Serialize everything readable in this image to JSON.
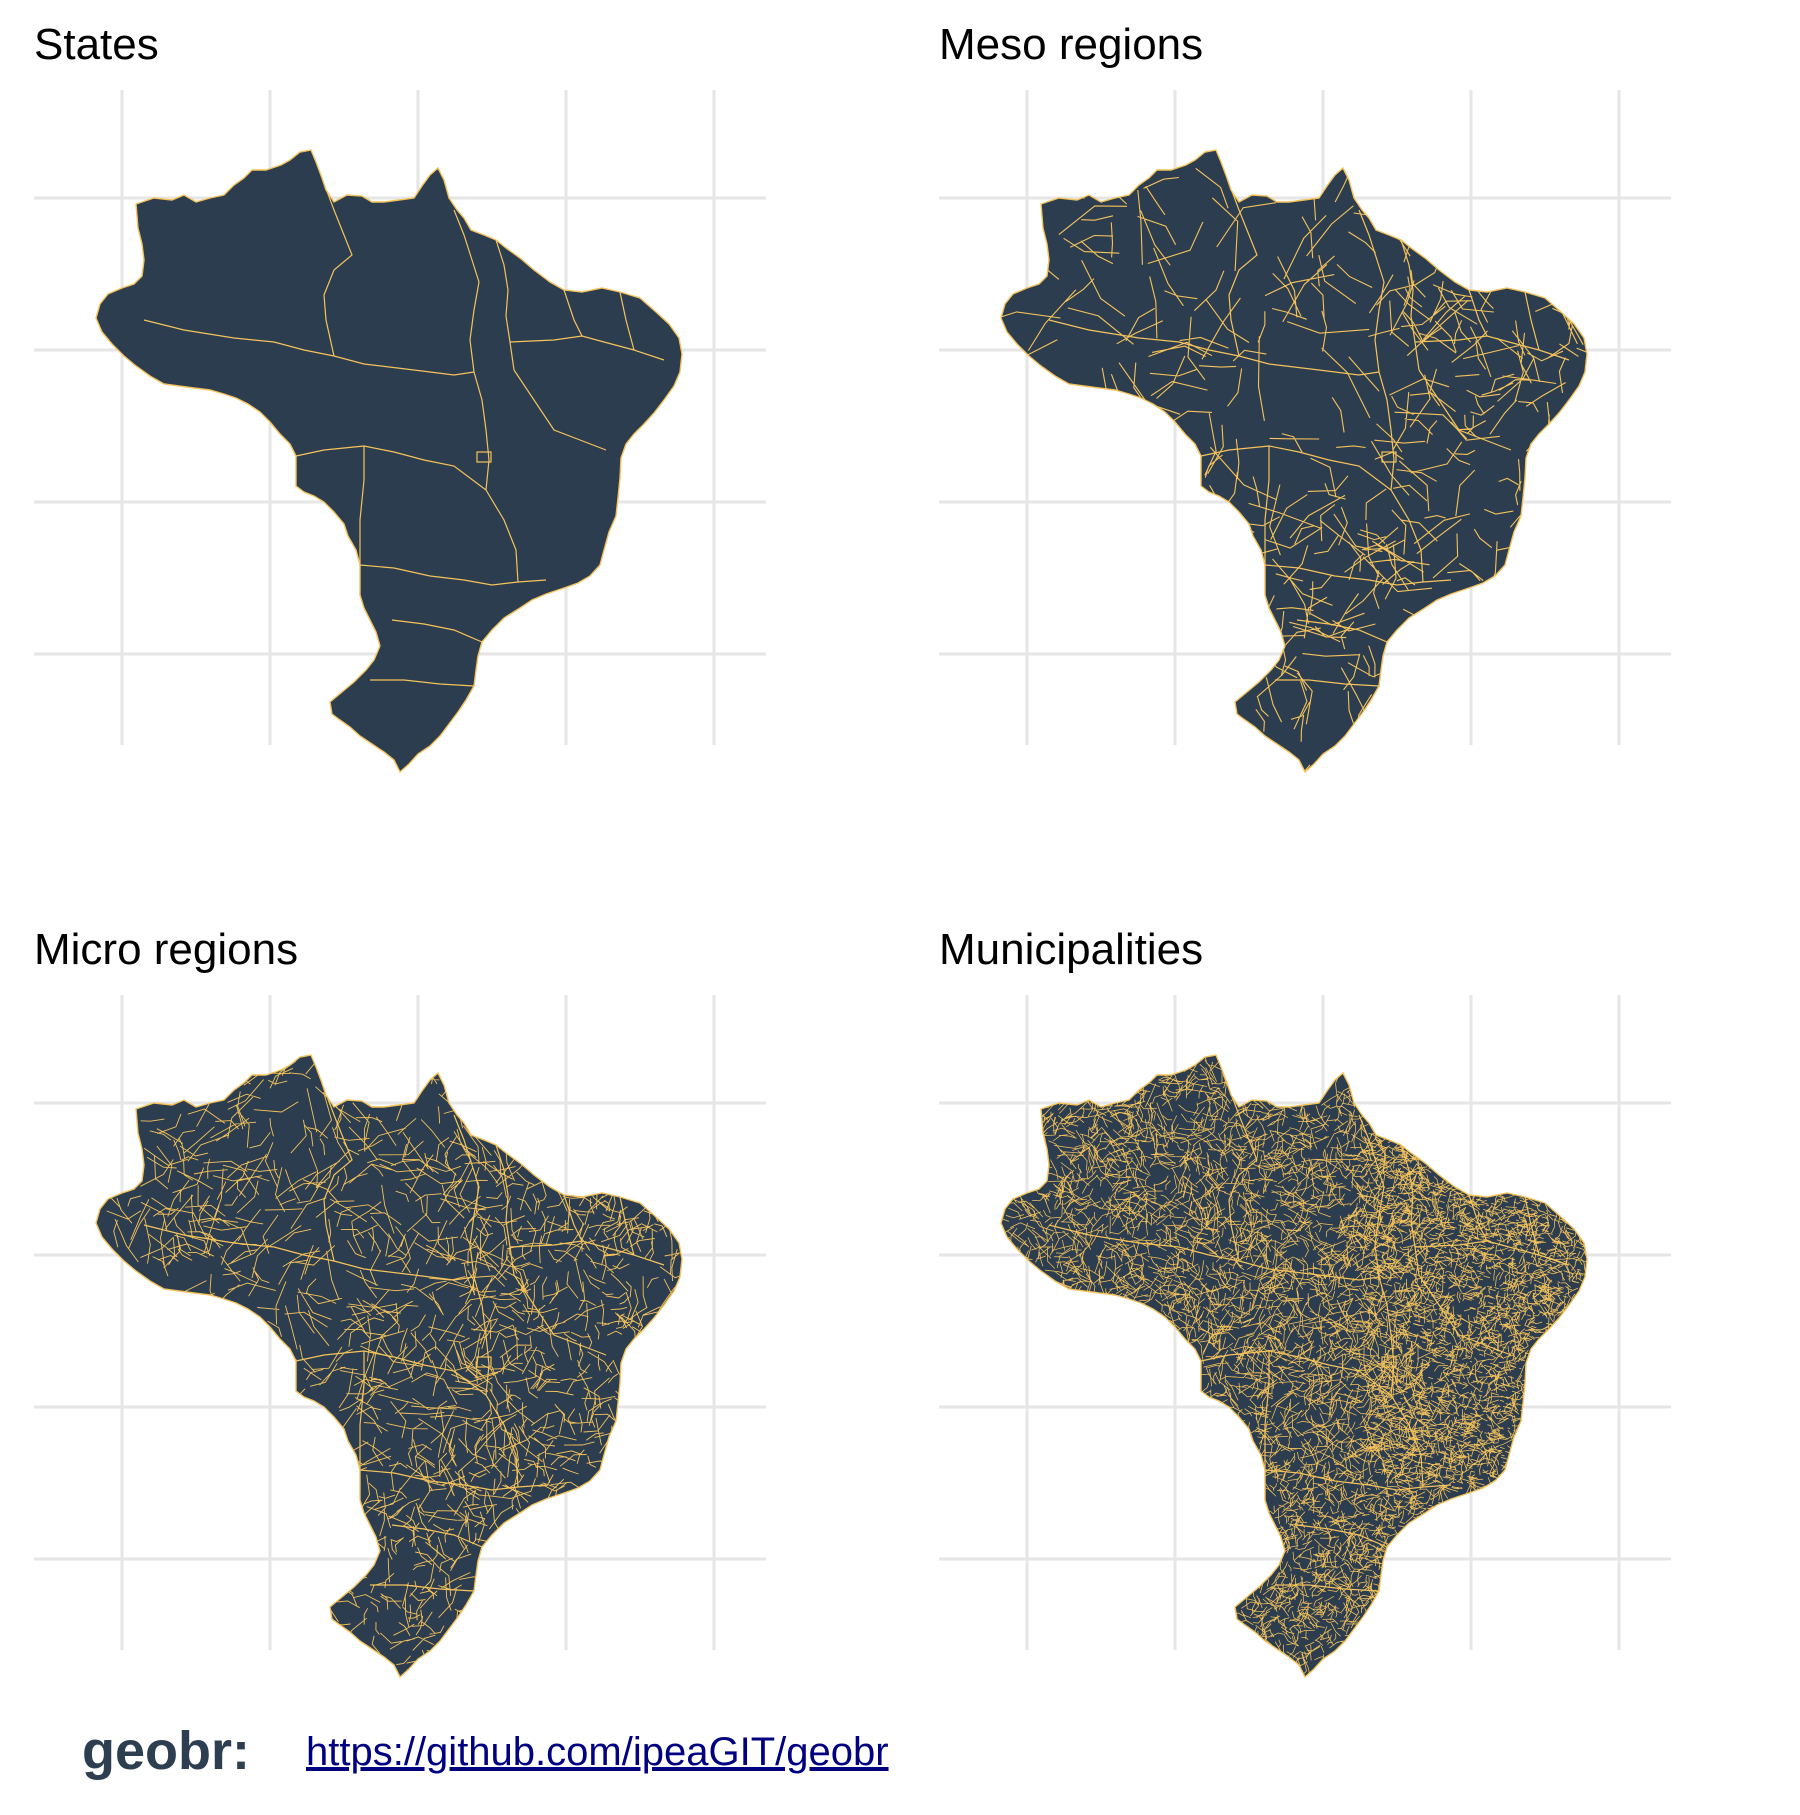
{
  "colors": {
    "fill": "#2d3d50",
    "border": "#f5c35a",
    "grid": "#e6e6e6",
    "brand": "#2c3e50",
    "link": "#000080"
  },
  "panels": [
    {
      "title": "States",
      "density": "low"
    },
    {
      "title": "Meso regions",
      "density": "medium"
    },
    {
      "title": "Micro regions",
      "density": "high"
    },
    {
      "title": "Municipalities",
      "density": "very-high"
    }
  ],
  "footer": {
    "brand": "geobr:",
    "link": "https://github.com/ipeaGIT/geobr"
  }
}
